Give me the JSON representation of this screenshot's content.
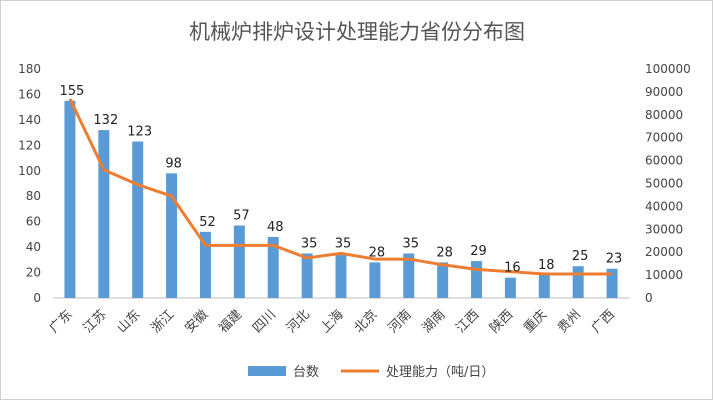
{
  "chart_data": {
    "type": "bar",
    "title": "机械炉排炉设计处理能力省份分布图",
    "categories": [
      "广东",
      "江苏",
      "山东",
      "浙江",
      "安徽",
      "福建",
      "四川",
      "河北",
      "上海",
      "北京",
      "河南",
      "湖南",
      "江西",
      "陕西",
      "重庆",
      "贵州",
      "广西"
    ],
    "series": [
      {
        "name": "台数",
        "type": "bar",
        "axis": "left",
        "color": "#5b9bd5",
        "values": [
          155,
          132,
          123,
          98,
          52,
          57,
          48,
          35,
          35,
          28,
          35,
          28,
          29,
          16,
          18,
          25,
          23
        ]
      },
      {
        "name": "处理能力（吨/日）",
        "type": "line",
        "axis": "right",
        "color": "#ed7d31",
        "values": [
          87000,
          56000,
          49500,
          44500,
          23000,
          23000,
          23000,
          17500,
          19500,
          17000,
          17000,
          14500,
          12500,
          11500,
          10500,
          10500,
          10500
        ]
      }
    ],
    "y_left": {
      "min": 0,
      "max": 180,
      "step": 20,
      "ticks": [
        "0",
        "20",
        "40",
        "60",
        "80",
        "100",
        "120",
        "140",
        "160",
        "180"
      ]
    },
    "y_right": {
      "min": 0,
      "max": 100000,
      "step": 10000,
      "ticks": [
        "0",
        "10000",
        "20000",
        "30000",
        "40000",
        "50000",
        "60000",
        "70000",
        "80000",
        "90000",
        "100000"
      ]
    },
    "grid": false,
    "legend": "bottom-center"
  }
}
